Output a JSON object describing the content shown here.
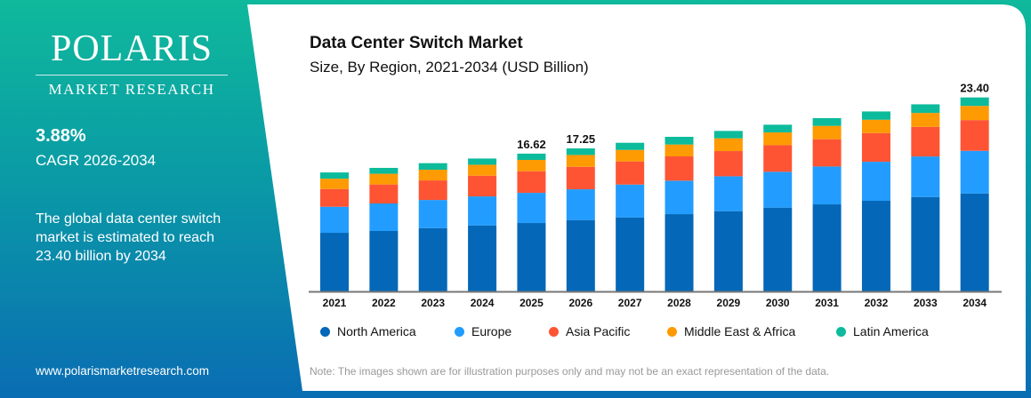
{
  "brand": {
    "name": "POLARIS",
    "tagline": "MARKET RESEARCH",
    "website": "www.polarismarketresearch.com"
  },
  "summary": {
    "cagr_value": "3.88%",
    "cagr_label": "CAGR 2026-2034",
    "description": "The global data center switch market is estimated to reach 23.40 billion by 2034"
  },
  "note": "Note: The images shown are for illustration purposes only and may not be an exact representation of the data.",
  "chart_data": {
    "type": "bar",
    "stacked": true,
    "title": "Data Center Switch Market",
    "subtitle": "Size, By Region, 2021-2034 (USD Billion)",
    "xlabel": "",
    "ylabel": "",
    "ylim": [
      0,
      25
    ],
    "grid": false,
    "legend_position": "bottom",
    "categories": [
      "2021",
      "2022",
      "2023",
      "2024",
      "2025",
      "2026",
      "2027",
      "2028",
      "2029",
      "2030",
      "2031",
      "2032",
      "2033",
      "2034"
    ],
    "series": [
      {
        "name": "North America",
        "color": "#0467b7",
        "values": [
          7.07,
          7.29,
          7.64,
          7.96,
          8.25,
          8.61,
          8.93,
          9.32,
          9.68,
          10.11,
          10.5,
          10.93,
          11.39,
          11.82
        ]
      },
      {
        "name": "Europe",
        "color": "#229dff",
        "values": [
          3.14,
          3.32,
          3.39,
          3.5,
          3.64,
          3.71,
          3.96,
          4.04,
          4.21,
          4.32,
          4.57,
          4.71,
          4.89,
          5.14
        ]
      },
      {
        "name": "Asia Pacific",
        "color": "#fe5434",
        "values": [
          2.14,
          2.29,
          2.36,
          2.5,
          2.61,
          2.71,
          2.79,
          2.93,
          3.04,
          3.21,
          3.29,
          3.46,
          3.57,
          3.71
        ]
      },
      {
        "name": "Middle East & Africa",
        "color": "#fe9a02",
        "values": [
          1.25,
          1.29,
          1.29,
          1.32,
          1.36,
          1.43,
          1.39,
          1.43,
          1.54,
          1.54,
          1.61,
          1.61,
          1.68,
          1.71
        ]
      },
      {
        "name": "Latin America",
        "color": "#0cbb9b",
        "values": [
          0.75,
          0.71,
          0.79,
          0.75,
          0.76,
          0.79,
          0.86,
          0.93,
          0.89,
          0.93,
          0.93,
          1.0,
          1.04,
          1.02
        ]
      }
    ],
    "data_labels": [
      {
        "category": "2025",
        "text": "16.62"
      },
      {
        "category": "2026",
        "text": "17.25"
      },
      {
        "category": "2034",
        "text": "23.40"
      }
    ]
  }
}
